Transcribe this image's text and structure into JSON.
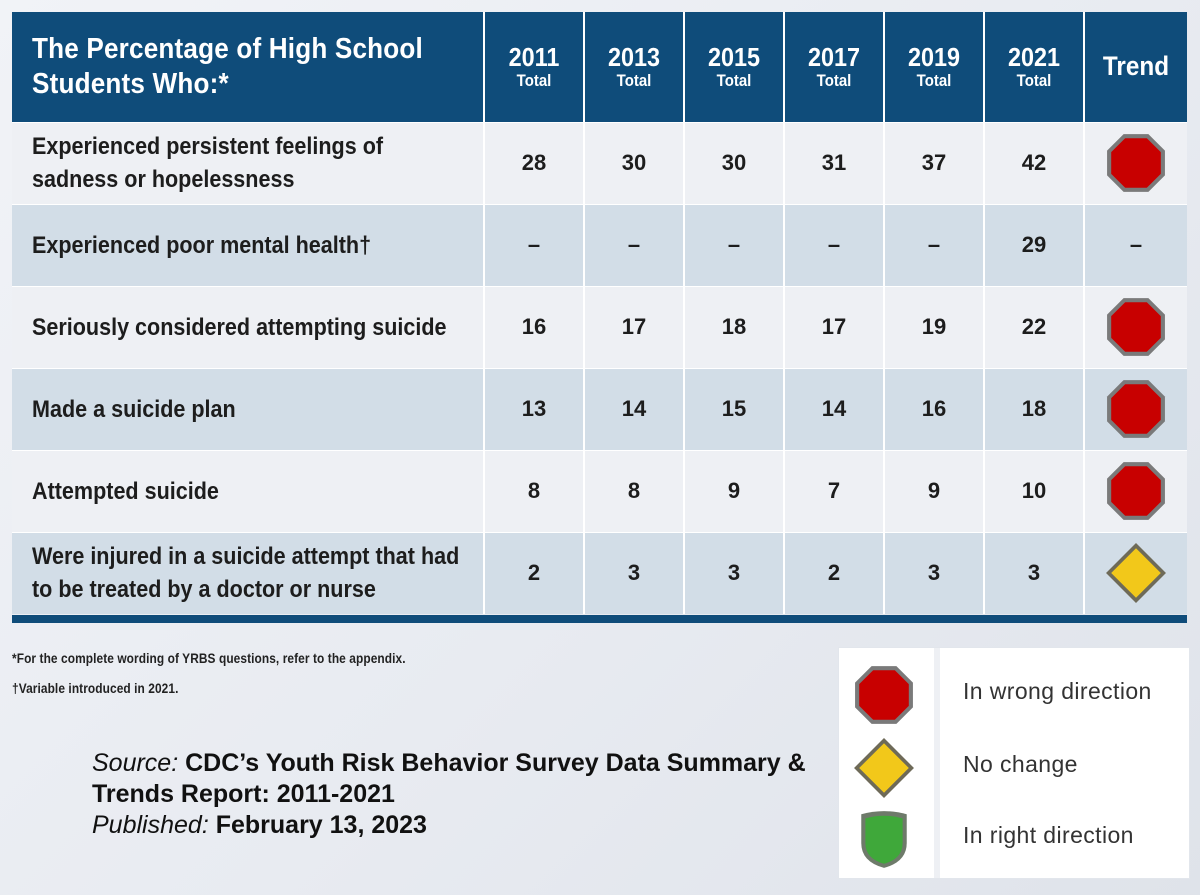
{
  "table": {
    "header_title": "The Percentage of High School Students Who:*",
    "years": [
      {
        "year": "2011",
        "sub": "Total"
      },
      {
        "year": "2013",
        "sub": "Total"
      },
      {
        "year": "2015",
        "sub": "Total"
      },
      {
        "year": "2017",
        "sub": "Total"
      },
      {
        "year": "2019",
        "sub": "Total"
      },
      {
        "year": "2021",
        "sub": "Total"
      }
    ],
    "trend_header": "Trend",
    "rows": [
      {
        "label": "Experienced persistent feelings of sadness or hopelessness",
        "values": [
          "28",
          "30",
          "30",
          "31",
          "37",
          "42"
        ],
        "trend": "wrong"
      },
      {
        "label": "Experienced poor mental health†",
        "values": [
          "–",
          "–",
          "–",
          "–",
          "–",
          "29"
        ],
        "trend": "none",
        "trend_text": "–"
      },
      {
        "label": "Seriously considered attempting suicide",
        "values": [
          "16",
          "17",
          "18",
          "17",
          "19",
          "22"
        ],
        "trend": "wrong"
      },
      {
        "label": "Made a suicide plan",
        "values": [
          "13",
          "14",
          "15",
          "14",
          "16",
          "18"
        ],
        "trend": "wrong"
      },
      {
        "label": "Attempted suicide",
        "values": [
          "8",
          "8",
          "9",
          "7",
          "9",
          "10"
        ],
        "trend": "wrong"
      },
      {
        "label": "Were injured in a suicide attempt that had to be treated by a doctor or nurse",
        "values": [
          "2",
          "3",
          "3",
          "2",
          "3",
          "3"
        ],
        "trend": "nochange"
      }
    ]
  },
  "footnotes": {
    "note1": "*For the complete wording of YRBS questions, refer to the appendix.",
    "note2": "†Variable introduced in 2021."
  },
  "source": {
    "source_label": "Source",
    "source_text": "CDC’s Youth Risk Behavior Survey Data Summary & Trends Report: 2011-2021",
    "published_label": "Published",
    "published_text": "February 13, 2023"
  },
  "legend": {
    "items": [
      {
        "symbol": "red-octagon",
        "label": "In wrong direction"
      },
      {
        "symbol": "yellow-diamond",
        "label": "No change"
      },
      {
        "symbol": "green-shield",
        "label": "In right direction"
      }
    ]
  },
  "colors": {
    "header_blue": "#0f4c7a",
    "row_light": "#eef0f4",
    "row_blue": "#d2dde7",
    "red": "#c80000",
    "yellow": "#f2c81a",
    "green": "#3fa83a"
  }
}
